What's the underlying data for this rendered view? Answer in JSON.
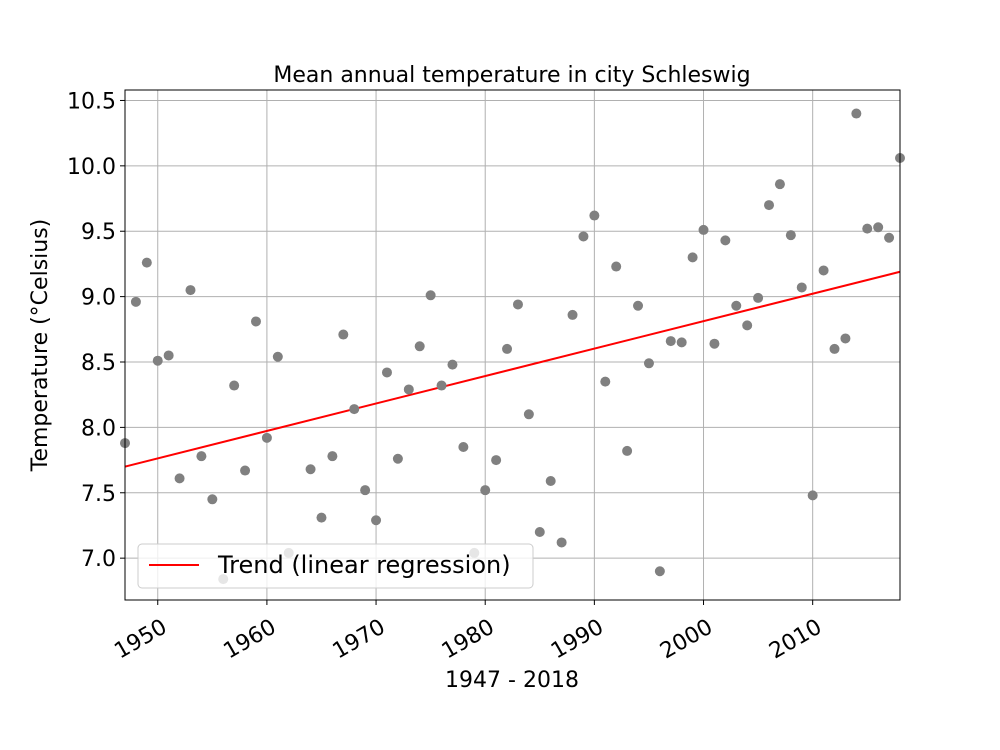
{
  "chart_data": {
    "type": "scatter",
    "title": "Mean annual temperature in city Schleswig",
    "xlabel": "1947 - 2018",
    "ylabel": "Temperature (°Celsius)",
    "xlim": [
      1947,
      2018
    ],
    "ylim": [
      6.68,
      10.58
    ],
    "x_ticks": [
      1950,
      1960,
      1970,
      1980,
      1990,
      2000,
      2010
    ],
    "y_ticks": [
      7.0,
      7.5,
      8.0,
      8.5,
      9.0,
      9.5,
      10.0,
      10.5
    ],
    "x_tick_labels": [
      "1950",
      "1960",
      "1970",
      "1980",
      "1990",
      "2000",
      "2010"
    ],
    "y_tick_labels": [
      "7.0",
      "7.5",
      "8.0",
      "8.5",
      "9.0",
      "9.5",
      "10.0",
      "10.5"
    ],
    "grid": true,
    "legend_position": "lower-left",
    "series": [
      {
        "type": "scatter",
        "color": "#808080",
        "x": [
          1947,
          1948,
          1949,
          1950,
          1951,
          1952,
          1953,
          1954,
          1955,
          1956,
          1957,
          1958,
          1959,
          1960,
          1961,
          1962,
          1964,
          1965,
          1966,
          1967,
          1968,
          1969,
          1970,
          1971,
          1972,
          1973,
          1974,
          1975,
          1976,
          1977,
          1978,
          1979,
          1980,
          1981,
          1982,
          1983,
          1984,
          1985,
          1986,
          1987,
          1988,
          1989,
          1990,
          1991,
          1992,
          1993,
          1994,
          1995,
          1996,
          1997,
          1998,
          1999,
          2000,
          2001,
          2002,
          2003,
          2004,
          2005,
          2006,
          2007,
          2008,
          2009,
          2010,
          2011,
          2012,
          2013,
          2014,
          2015,
          2016,
          2017,
          2018
        ],
        "y": [
          7.88,
          8.96,
          9.26,
          8.51,
          8.55,
          7.61,
          9.05,
          7.78,
          7.45,
          6.84,
          8.32,
          7.67,
          8.81,
          7.92,
          8.54,
          7.04,
          7.68,
          7.31,
          7.78,
          8.71,
          8.14,
          7.52,
          7.29,
          8.42,
          7.76,
          8.29,
          8.62,
          9.01,
          8.32,
          8.48,
          7.85,
          7.04,
          7.52,
          7.75,
          8.6,
          8.94,
          8.1,
          7.2,
          7.59,
          7.12,
          8.86,
          9.46,
          9.62,
          8.35,
          9.23,
          7.82,
          8.93,
          8.49,
          6.9,
          8.66,
          8.65,
          9.3,
          9.51,
          8.64,
          9.43,
          8.93,
          8.78,
          8.99,
          9.7,
          9.86,
          9.47,
          9.07,
          7.48,
          9.2,
          8.6,
          8.68,
          10.4,
          9.52,
          9.53,
          9.45,
          10.06
        ]
      },
      {
        "type": "line",
        "name": "Trend (linear regression)",
        "color": "#ff0000",
        "x": [
          1947,
          2018
        ],
        "y": [
          7.7,
          9.19
        ]
      }
    ]
  }
}
